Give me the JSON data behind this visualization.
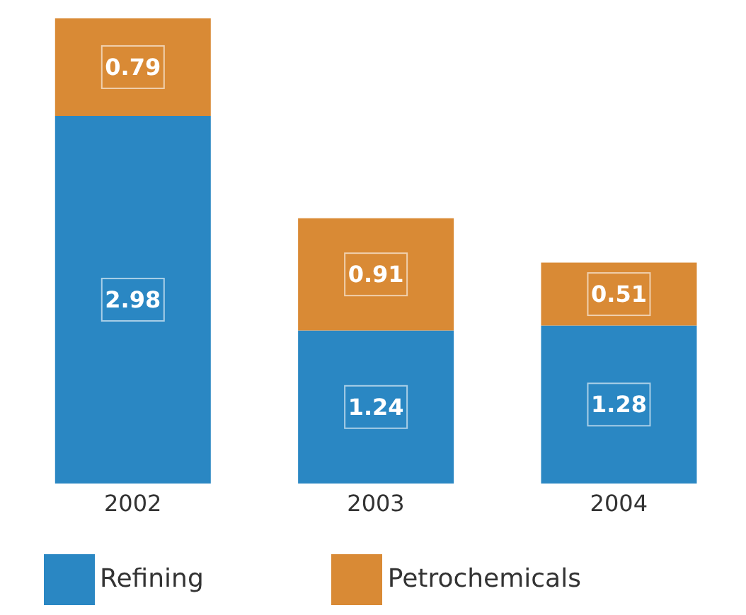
{
  "chart_data": {
    "type": "bar",
    "stacked": true,
    "categories": [
      "2002",
      "2003",
      "2004"
    ],
    "series": [
      {
        "name": "Refining",
        "color": "#2a87c3",
        "values": [
          2.98,
          1.24,
          1.28
        ]
      },
      {
        "name": "Petrochemicals",
        "color": "#d98a35",
        "values": [
          0.79,
          0.91,
          0.51
        ]
      }
    ],
    "data_labels": true,
    "legend": "bottom",
    "grid": false
  }
}
